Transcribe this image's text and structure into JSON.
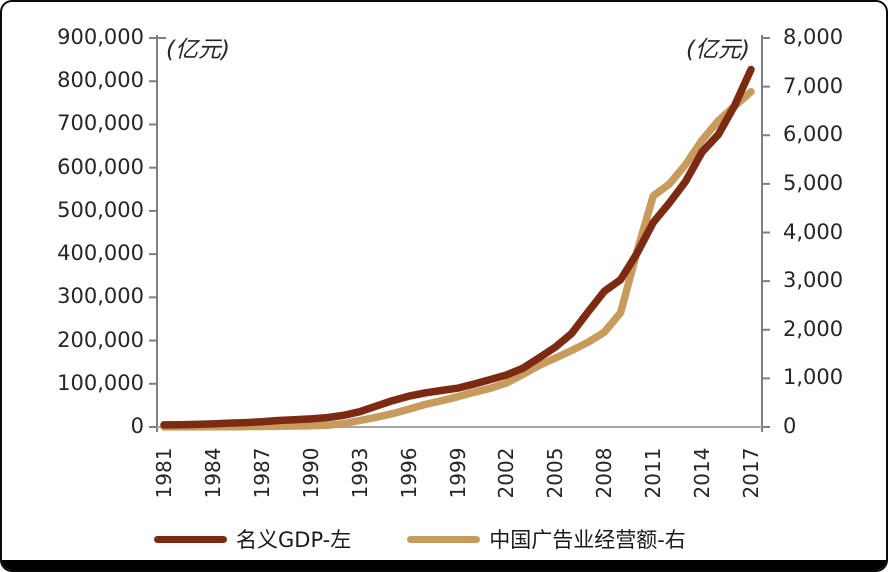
{
  "colors": {
    "gdp_line": "#7D2A12",
    "ad_line": "#C89A5C",
    "axis_line": "#7F7F7F",
    "baseline": "#A6A6A6",
    "label_text": "#262626",
    "frame_bar": "#000000"
  },
  "chart_data": {
    "type": "line",
    "title": "",
    "grid": false,
    "years": [
      1981,
      1982,
      1983,
      1984,
      1985,
      1986,
      1987,
      1988,
      1989,
      1990,
      1991,
      1992,
      1993,
      1994,
      1995,
      1996,
      1997,
      1998,
      1999,
      2000,
      2001,
      2002,
      2003,
      2004,
      2005,
      2006,
      2007,
      2008,
      2009,
      2010,
      2011,
      2012,
      2013,
      2014,
      2015,
      2016,
      2017
    ],
    "x_axis": {
      "tick_labels": [
        "1981",
        "1984",
        "1987",
        "1990",
        "1993",
        "1996",
        "1999",
        "2002",
        "2005",
        "2008",
        "2011",
        "2014",
        "2017"
      ],
      "tick_years": [
        1981,
        1984,
        1987,
        1990,
        1993,
        1996,
        1999,
        2002,
        2005,
        2008,
        2011,
        2014,
        2017
      ]
    },
    "left_axis": {
      "unit_label": "(亿元)",
      "min": 0,
      "max": 900000,
      "tick_step": 100000,
      "tick_labels": [
        "0",
        "100,000",
        "200,000",
        "300,000",
        "400,000",
        "500,000",
        "600,000",
        "700,000",
        "800,000",
        "900,000"
      ]
    },
    "right_axis": {
      "unit_label": "(亿元)",
      "min": 0,
      "max": 8000,
      "tick_step": 1000,
      "tick_labels": [
        "0",
        "1,000",
        "2,000",
        "3,000",
        "4,000",
        "5,000",
        "6,000",
        "7,000",
        "8,000"
      ]
    },
    "series": [
      {
        "name": "名义GDP-左",
        "axis": "left",
        "color": "#7D2A12",
        "values": [
          4890,
          5330,
          5990,
          7230,
          9040,
          10280,
          12060,
          15040,
          17000,
          18670,
          21780,
          26920,
          35330,
          48200,
          60790,
          71180,
          78970,
          84400,
          89680,
          99210,
          109660,
          120330,
          135820,
          159880,
          184940,
          216310,
          265810,
          314050,
          340900,
          401510,
          473100,
          518940,
          568850,
          636460,
          676710,
          744130,
          827120
        ]
      },
      {
        "name": "中国广告业经营额-右",
        "axis": "right",
        "color": "#C89A5C",
        "values": [
          1.2,
          1.5,
          2.3,
          3.7,
          6,
          8.4,
          11.1,
          14.9,
          20,
          25,
          35,
          68,
          134,
          200,
          273,
          367,
          462,
          538,
          622,
          713,
          795,
          903,
          1079,
          1265,
          1416,
          1573,
          1741,
          1950,
          2350,
          3600,
          4750,
          5000,
          5400,
          5900,
          6300,
          6600,
          6896
        ]
      }
    ],
    "legend": {
      "position": "bottom"
    }
  }
}
